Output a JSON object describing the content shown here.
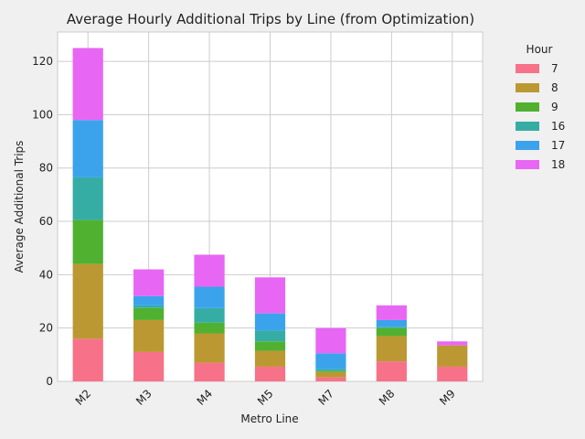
{
  "chart_data": {
    "type": "bar",
    "stacked": true,
    "title": "Average Hourly Additional Trips by Line (from Optimization)",
    "xlabel": "Metro Line",
    "ylabel": "Average Additional Trips",
    "categories": [
      "M2",
      "M3",
      "M4",
      "M5",
      "M7",
      "M8",
      "M9"
    ],
    "ylim": [
      0,
      131
    ],
    "yticks": [
      0,
      20,
      40,
      60,
      80,
      100,
      120
    ],
    "grid": true,
    "legend": {
      "title": "Hour",
      "placement": "right"
    },
    "series": [
      {
        "name": "7",
        "color": "#f77189",
        "values": [
          16,
          11,
          7,
          5.5,
          1.5,
          7.5,
          5.5
        ]
      },
      {
        "name": "8",
        "color": "#bb9832",
        "values": [
          28,
          12,
          11,
          6,
          2,
          9.5,
          8
        ]
      },
      {
        "name": "9",
        "color": "#50b131",
        "values": [
          16.5,
          4.5,
          4,
          3.5,
          0.5,
          3,
          0
        ]
      },
      {
        "name": "16",
        "color": "#36ada4",
        "values": [
          16,
          1,
          5.5,
          4,
          0.5,
          0.5,
          0
        ]
      },
      {
        "name": "17",
        "color": "#3ba3ec",
        "values": [
          21.5,
          3.5,
          8,
          6.5,
          6,
          2.5,
          0
        ]
      },
      {
        "name": "18",
        "color": "#e866f4",
        "values": [
          27,
          10,
          12,
          13.5,
          9.5,
          5.5,
          1.5
        ]
      }
    ]
  }
}
